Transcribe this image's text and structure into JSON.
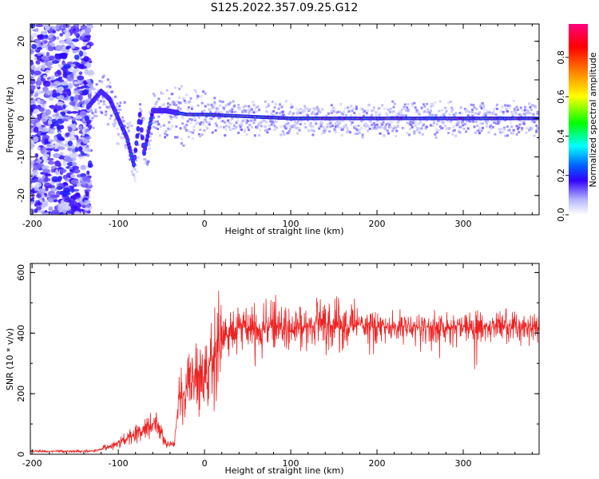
{
  "title": "S125.2022.357.09.25.G12",
  "chart_data": [
    {
      "type": "heatmap",
      "xlabel": "Height of straight line (km)",
      "ylabel": "Frequency (Hz)",
      "xlim": [
        -202,
        388
      ],
      "ylim": [
        -25,
        24.5
      ],
      "xticks": [
        -200,
        -100,
        0,
        100,
        200,
        300
      ],
      "yticks": [
        -20,
        -10,
        0,
        10,
        20
      ],
      "grid": false,
      "colorbar": {
        "label": "Normalized spectral amplitude",
        "range": [
          0,
          0.97
        ],
        "ticks": [
          0.0,
          0.2,
          0.4,
          0.6,
          0.8
        ],
        "colormap": [
          "#ffffff",
          "#b4b4ff",
          "#3200ff",
          "#0064ff",
          "#00ffff",
          "#00ff00",
          "#ffff00",
          "#ff8000",
          "#ff0000",
          "#ff0080"
        ]
      },
      "ridge": {
        "description_values": [
          {
            "x": -135,
            "y": 3
          },
          {
            "x": -120,
            "y": 7
          },
          {
            "x": -110,
            "y": 5
          },
          {
            "x": -100,
            "y": 0
          },
          {
            "x": -90,
            "y": -5
          },
          {
            "x": -82,
            "y": -12
          },
          {
            "x": -75,
            "y": 1
          },
          {
            "x": -70,
            "y": -9
          },
          {
            "x": -60,
            "y": 2
          },
          {
            "x": -45,
            "y": 2
          },
          {
            "x": -20,
            "y": 1
          },
          {
            "x": 0,
            "y": 1
          },
          {
            "x": 100,
            "y": 0
          },
          {
            "x": 200,
            "y": 0
          },
          {
            "x": 300,
            "y": 0
          },
          {
            "x": 388,
            "y": 0
          }
        ]
      }
    },
    {
      "type": "line",
      "xlabel": "Height of straight line (km)",
      "ylabel": "SNR (10 * v/v)",
      "xlim": [
        -202,
        388
      ],
      "ylim": [
        0,
        630
      ],
      "xticks": [
        -200,
        -100,
        0,
        100,
        200,
        300
      ],
      "yticks": [
        0,
        200,
        400,
        600
      ],
      "grid": false,
      "series": [
        {
          "color": "#ee2222",
          "envelope": [
            {
              "x": -202,
              "y": 10
            },
            {
              "x": -130,
              "y": 10
            },
            {
              "x": -110,
              "y": 25
            },
            {
              "x": -90,
              "y": 50
            },
            {
              "x": -70,
              "y": 80
            },
            {
              "x": -55,
              "y": 110
            },
            {
              "x": -45,
              "y": 40
            },
            {
              "x": -35,
              "y": 30
            },
            {
              "x": -30,
              "y": 180
            },
            {
              "x": -20,
              "y": 220
            },
            {
              "x": -10,
              "y": 240
            },
            {
              "x": 0,
              "y": 280
            },
            {
              "x": 10,
              "y": 310
            },
            {
              "x": 20,
              "y": 370
            },
            {
              "x": 40,
              "y": 420
            },
            {
              "x": 60,
              "y": 410
            },
            {
              "x": 80,
              "y": 430
            },
            {
              "x": 100,
              "y": 410
            },
            {
              "x": 120,
              "y": 420
            },
            {
              "x": 140,
              "y": 430
            },
            {
              "x": 160,
              "y": 420
            },
            {
              "x": 180,
              "y": 430
            },
            {
              "x": 200,
              "y": 420
            },
            {
              "x": 250,
              "y": 420
            },
            {
              "x": 300,
              "y": 420
            },
            {
              "x": 388,
              "y": 420
            }
          ]
        }
      ]
    }
  ]
}
